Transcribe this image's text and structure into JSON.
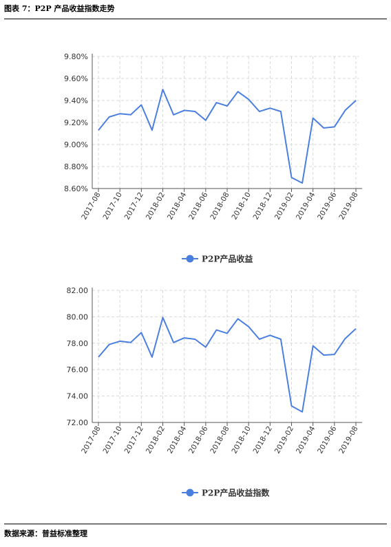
{
  "header": {
    "title": "图表 7：P2P 产品收益指数走势"
  },
  "footer": {
    "source": "数据来源：普益标准整理"
  },
  "colors": {
    "line": "#4a7fe0",
    "grid": "#d8d8d8",
    "axis": "#555555"
  },
  "chart_data": [
    {
      "type": "line",
      "x": [
        "2017-08",
        "2017-09",
        "2017-10",
        "2017-11",
        "2017-12",
        "2018-01",
        "2018-02",
        "2018-03",
        "2018-04",
        "2018-05",
        "2018-06",
        "2018-07",
        "2018-08",
        "2018-09",
        "2018-10",
        "2018-11",
        "2018-12",
        "2019-01",
        "2019-02",
        "2019-03",
        "2019-04",
        "2019-05",
        "2019-06",
        "2019-07",
        "2019-08"
      ],
      "tick_labels": [
        "2017-08",
        "2017-10",
        "2017-12",
        "2018-02",
        "2018-04",
        "2018-06",
        "2018-08",
        "2018-10",
        "2018-12",
        "2019-02",
        "2019-04",
        "2019-06",
        "2019-08"
      ],
      "y_ticks": [
        "8.60%",
        "8.80%",
        "9.00%",
        "9.20%",
        "9.40%",
        "9.60%",
        "9.80%"
      ],
      "ylim": [
        8.6,
        9.8
      ],
      "grid": true,
      "legend": "bottom-center",
      "series": [
        {
          "name": "P2P产品收益",
          "values": [
            9.13,
            9.25,
            9.28,
            9.27,
            9.36,
            9.13,
            9.5,
            9.27,
            9.31,
            9.3,
            9.22,
            9.38,
            9.35,
            9.48,
            9.41,
            9.3,
            9.33,
            9.3,
            8.7,
            8.65,
            9.24,
            9.15,
            9.16,
            9.31,
            9.4
          ]
        }
      ]
    },
    {
      "type": "line",
      "x": [
        "2017-08",
        "2017-09",
        "2017-10",
        "2017-11",
        "2017-12",
        "2018-01",
        "2018-02",
        "2018-03",
        "2018-04",
        "2018-05",
        "2018-06",
        "2018-07",
        "2018-08",
        "2018-09",
        "2018-10",
        "2018-11",
        "2018-12",
        "2019-01",
        "2019-02",
        "2019-03",
        "2019-04",
        "2019-05",
        "2019-06",
        "2019-07",
        "2019-08"
      ],
      "tick_labels": [
        "2017-08",
        "2017-10",
        "2017-12",
        "2018-02",
        "2018-04",
        "2018-06",
        "2018-08",
        "2018-10",
        "2018-12",
        "2019-02",
        "2019-04",
        "2019-06",
        "2019-08"
      ],
      "y_ticks": [
        "72.00",
        "74.00",
        "76.00",
        "78.00",
        "80.00",
        "82.00"
      ],
      "ylim": [
        72,
        82
      ],
      "grid": true,
      "legend": "bottom-center",
      "series": [
        {
          "name": "P2P产品收益指数",
          "values": [
            76.95,
            77.9,
            78.15,
            78.05,
            78.8,
            76.95,
            79.95,
            78.05,
            78.4,
            78.3,
            77.7,
            79.0,
            78.75,
            79.85,
            79.25,
            78.3,
            78.6,
            78.3,
            73.25,
            72.8,
            77.8,
            77.1,
            77.15,
            78.35,
            79.1
          ]
        }
      ]
    }
  ]
}
